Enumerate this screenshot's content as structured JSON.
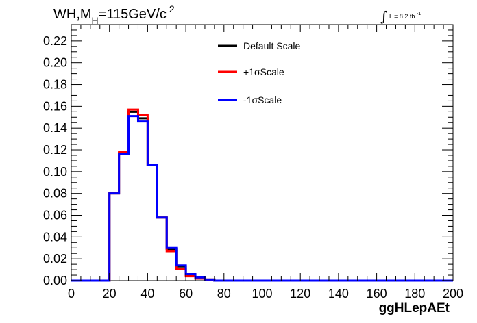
{
  "title": {
    "prefix": "WH,M",
    "subscript": "H",
    "value": "=115GeV/c",
    "superscript": "2"
  },
  "luminosity": {
    "integral_symbol": "∫",
    "text": "L = 8.2 fb",
    "superscript": "-1"
  },
  "chart_data": {
    "type": "line",
    "style": "step-histogram",
    "xlabel": "ggHLepAEt",
    "ylabel": "",
    "xlim": [
      0,
      200
    ],
    "ylim": [
      0,
      0.235
    ],
    "x_ticks": [
      0,
      20,
      40,
      60,
      80,
      100,
      120,
      140,
      160,
      180,
      200
    ],
    "y_ticks": [
      0.0,
      0.02,
      0.04,
      0.06,
      0.08,
      0.1,
      0.12,
      0.14,
      0.16,
      0.18,
      0.2,
      0.22
    ],
    "y_tick_labels": [
      "0.00",
      "0.02",
      "0.04",
      "0.06",
      "0.08",
      "0.10",
      "0.12",
      "0.14",
      "0.16",
      "0.18",
      "0.20",
      "0.22"
    ],
    "bin_edges": [
      0,
      5,
      10,
      15,
      20,
      25,
      30,
      35,
      40,
      45,
      50,
      55,
      60,
      65,
      70,
      75,
      80,
      85,
      90,
      95,
      100,
      105,
      110,
      115,
      120,
      125,
      130,
      135,
      140,
      145,
      150,
      155,
      160,
      165,
      170,
      175,
      180,
      185,
      190,
      195,
      200
    ],
    "grid": false,
    "legend_position": "top-center",
    "series": [
      {
        "name": "Default Scale",
        "color": "#000000",
        "values": [
          0,
          0,
          0,
          0,
          0.08,
          0.117,
          0.155,
          0.149,
          0.106,
          0.058,
          0.029,
          0.013,
          0.005,
          0.002,
          0.001,
          0,
          0,
          0,
          0,
          0,
          0,
          0,
          0,
          0,
          0,
          0,
          0,
          0,
          0,
          0,
          0,
          0,
          0,
          0,
          0,
          0,
          0,
          0,
          0,
          0
        ]
      },
      {
        "name": "+1σScale",
        "color": "#ff0000",
        "values": [
          0,
          0,
          0,
          0,
          0.08,
          0.118,
          0.157,
          0.152,
          0.106,
          0.058,
          0.027,
          0.011,
          0.004,
          0.002,
          0.001,
          0,
          0,
          0,
          0,
          0,
          0,
          0,
          0,
          0,
          0,
          0,
          0,
          0,
          0,
          0,
          0,
          0,
          0,
          0,
          0,
          0,
          0,
          0,
          0,
          0
        ]
      },
      {
        "name": "-1σScale",
        "color": "#0000ff",
        "values": [
          0,
          0,
          0,
          0,
          0.08,
          0.116,
          0.151,
          0.146,
          0.106,
          0.058,
          0.03,
          0.014,
          0.006,
          0.003,
          0.001,
          0,
          0,
          0,
          0,
          0,
          0,
          0,
          0,
          0,
          0,
          0,
          0,
          0,
          0,
          0,
          0,
          0,
          0,
          0,
          0,
          0,
          0,
          0,
          0,
          0
        ]
      }
    ]
  }
}
